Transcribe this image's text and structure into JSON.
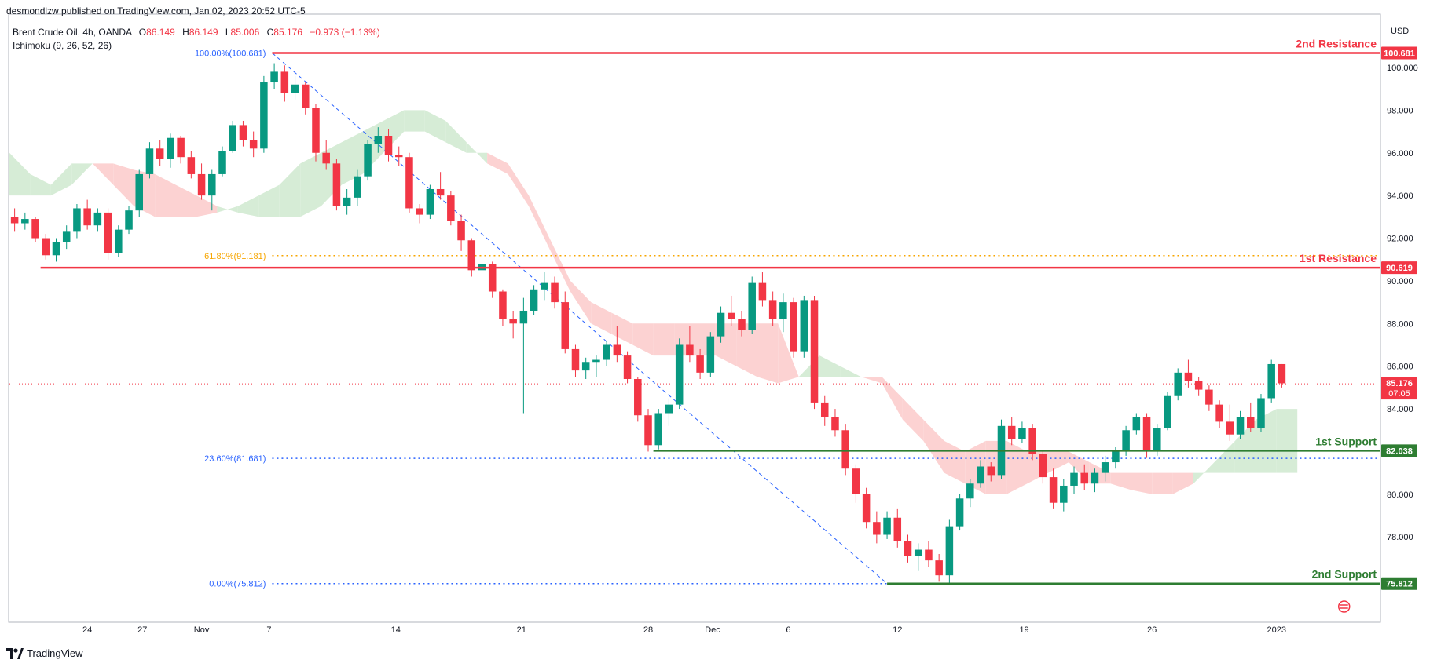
{
  "header": {
    "published": "desmondlzw published on TradingView.com, Jan 02, 2023 20:52 UTC-5",
    "symbol": "Brent Crude Oil, 4h, OANDA",
    "ohlc": {
      "o_label": "O",
      "o": "86.149",
      "h_label": "H",
      "h": "86.149",
      "l_label": "L",
      "l": "85.006",
      "c_label": "C",
      "c": "85.176",
      "change": "−0.973 (−1.13%)"
    },
    "indicator": "Ichimoku (9, 26, 52, 26)",
    "currency": "USD"
  },
  "footer": {
    "brand": "TradingView"
  },
  "colors": {
    "up": "#089981",
    "down": "#f23645",
    "resistance": "#f23645",
    "support": "#2e7d32",
    "fib": "#2962ff",
    "fib_mid": "#f7a600",
    "cloud_bull": "#d6ecd6",
    "cloud_bear": "#fcd2d2"
  },
  "chart_data": {
    "type": "candlestick",
    "ylim": [
      74,
      102.5
    ],
    "xlim": [
      0,
      132
    ],
    "y_ticks": [
      "78.000",
      "80.000",
      "82.000",
      "84.000",
      "86.000",
      "88.000",
      "90.000",
      "92.000",
      "94.000",
      "96.000",
      "98.000",
      "100.000"
    ],
    "x_ticks": [
      {
        "label": "24",
        "x": 7.5
      },
      {
        "label": "27",
        "x": 12.8
      },
      {
        "label": "Nov",
        "x": 18.5
      },
      {
        "label": "7",
        "x": 25.0
      },
      {
        "label": "14",
        "x": 37.2
      },
      {
        "label": "21",
        "x": 49.3
      },
      {
        "label": "28",
        "x": 61.5
      },
      {
        "label": "Dec",
        "x": 67.7
      },
      {
        "label": "6",
        "x": 75.0
      },
      {
        "label": "12",
        "x": 85.5
      },
      {
        "label": "19",
        "x": 97.7
      },
      {
        "label": "26",
        "x": 110.0
      },
      {
        "label": "2023",
        "x": 122.0
      }
    ],
    "levels": [
      {
        "name": "2nd Resistance",
        "value": "100.681",
        "type": "resistance",
        "x_start": 25.3
      },
      {
        "name": "1st Resistance",
        "value": "90.619",
        "type": "resistance",
        "x_start": 3.0
      },
      {
        "name": "1st Support",
        "value": "82.038",
        "type": "support",
        "x_start": 62.0
      },
      {
        "name": "2nd Support",
        "value": "75.812",
        "type": "support",
        "x_start": 84.5
      }
    ],
    "fibonacci": [
      {
        "label": "100.00%(100.681)",
        "value": 100.681,
        "color": "fib"
      },
      {
        "label": "61.80%(91.181)",
        "value": 91.181,
        "color": "fib_mid"
      },
      {
        "label": "23.60%(81.681)",
        "value": 81.681,
        "color": "fib"
      },
      {
        "label": "0.00%(75.812)",
        "value": 75.812,
        "color": "fib"
      }
    ],
    "fib_trend": {
      "from": [
        25.3,
        100.681
      ],
      "to": [
        84.5,
        75.812
      ]
    },
    "last_price": {
      "value": "85.176",
      "countdown": "07:05"
    },
    "cloud": {
      "x": [
        0,
        2,
        4,
        6,
        8,
        10,
        12,
        14,
        16,
        18,
        20,
        22,
        24,
        26,
        28,
        30,
        32,
        34,
        36,
        38,
        40,
        42,
        44,
        46,
        48,
        50,
        52,
        54,
        56,
        58,
        60,
        62,
        64,
        66,
        68,
        70,
        72,
        74,
        76,
        78,
        80,
        82,
        84,
        86,
        88,
        90,
        92,
        94,
        96,
        98,
        100,
        102,
        104,
        106,
        108,
        110,
        112,
        114,
        116,
        118,
        120,
        122,
        124
      ],
      "a": [
        96.0,
        95.0,
        94.5,
        95.5,
        95.5,
        94.5,
        93.5,
        93.0,
        93.0,
        93.0,
        93.2,
        93.5,
        94.0,
        94.5,
        95.5,
        96.0,
        96.5,
        97.0,
        97.5,
        98.0,
        98.0,
        97.5,
        96.5,
        95.5,
        95.0,
        93.5,
        91.5,
        89.5,
        88.0,
        87.5,
        87.0,
        86.5,
        86.5,
        86.5,
        86.5,
        86.0,
        85.5,
        85.2,
        85.5,
        86.5,
        86.0,
        85.5,
        85.2,
        83.5,
        82.5,
        81.0,
        80.5,
        80.0,
        80.0,
        80.5,
        81.0,
        81.5,
        80.5,
        80.5,
        80.2,
        80.0,
        80.0,
        80.5,
        81.5,
        82.5,
        83.5,
        84.0,
        84.0
      ],
      "b": [
        94.0,
        94.0,
        94.0,
        94.5,
        95.5,
        95.5,
        95.2,
        95.0,
        94.5,
        94.0,
        93.5,
        93.2,
        93.0,
        93.0,
        93.0,
        93.5,
        94.5,
        95.0,
        96.0,
        97.0,
        97.0,
        96.5,
        96.0,
        96.0,
        95.5,
        94.0,
        92.0,
        90.0,
        89.0,
        88.5,
        88.0,
        88.0,
        88.0,
        88.0,
        88.0,
        88.0,
        88.0,
        88.0,
        85.5,
        85.5,
        85.5,
        85.5,
        85.5,
        84.5,
        83.5,
        82.5,
        82.0,
        82.5,
        82.5,
        82.0,
        82.0,
        82.0,
        81.5,
        81.0,
        81.0,
        81.0,
        81.0,
        81.0,
        81.0,
        81.0,
        81.0,
        81.0,
        81.0
      ]
    },
    "candles": [
      [
        93.0,
        93.4,
        92.3,
        92.7
      ],
      [
        92.7,
        93.2,
        92.4,
        92.9
      ],
      [
        92.9,
        93.0,
        91.8,
        92.0
      ],
      [
        92.0,
        92.2,
        91.0,
        91.2
      ],
      [
        91.2,
        92.0,
        90.9,
        91.8
      ],
      [
        91.8,
        92.6,
        91.5,
        92.3
      ],
      [
        92.3,
        93.6,
        92.0,
        93.4
      ],
      [
        93.4,
        93.8,
        92.4,
        92.6
      ],
      [
        92.6,
        93.4,
        92.3,
        93.2
      ],
      [
        93.2,
        93.4,
        91.0,
        91.3
      ],
      [
        91.3,
        92.6,
        91.1,
        92.4
      ],
      [
        92.4,
        93.5,
        92.2,
        93.3
      ],
      [
        93.3,
        95.2,
        93.0,
        95.0
      ],
      [
        95.0,
        96.5,
        94.8,
        96.2
      ],
      [
        96.2,
        96.6,
        95.4,
        95.7
      ],
      [
        95.7,
        96.9,
        95.3,
        96.7
      ],
      [
        96.7,
        96.8,
        95.5,
        95.8
      ],
      [
        95.8,
        96.1,
        94.8,
        95.0
      ],
      [
        95.0,
        95.5,
        93.8,
        94.0
      ],
      [
        94.0,
        95.2,
        93.3,
        95.0
      ],
      [
        95.0,
        96.3,
        94.9,
        96.1
      ],
      [
        96.1,
        97.5,
        96.0,
        97.3
      ],
      [
        97.3,
        97.5,
        96.3,
        96.6
      ],
      [
        96.6,
        97.0,
        95.8,
        96.2
      ],
      [
        96.2,
        99.6,
        96.0,
        99.3
      ],
      [
        99.3,
        100.2,
        99.0,
        99.8
      ],
      [
        99.8,
        100.1,
        98.4,
        98.8
      ],
      [
        98.8,
        99.6,
        98.5,
        99.2
      ],
      [
        99.2,
        99.3,
        97.8,
        98.1
      ],
      [
        98.1,
        98.3,
        95.6,
        96.0
      ],
      [
        96.0,
        96.6,
        95.2,
        95.5
      ],
      [
        95.5,
        95.7,
        93.3,
        93.5
      ],
      [
        93.5,
        94.3,
        93.1,
        93.9
      ],
      [
        93.9,
        95.2,
        93.5,
        94.9
      ],
      [
        94.9,
        96.6,
        94.7,
        96.4
      ],
      [
        96.4,
        97.2,
        96.0,
        96.8
      ],
      [
        96.8,
        97.1,
        95.6,
        95.9
      ],
      [
        95.9,
        96.3,
        95.4,
        95.8
      ],
      [
        95.8,
        96.0,
        93.2,
        93.4
      ],
      [
        93.4,
        93.6,
        92.7,
        93.1
      ],
      [
        93.1,
        94.5,
        92.9,
        94.3
      ],
      [
        94.3,
        95.1,
        93.8,
        94.0
      ],
      [
        94.0,
        94.2,
        92.6,
        92.8
      ],
      [
        92.8,
        93.1,
        91.4,
        91.9
      ],
      [
        91.9,
        92.0,
        90.2,
        90.5
      ],
      [
        90.5,
        91.0,
        89.9,
        90.8
      ],
      [
        90.8,
        90.9,
        89.2,
        89.5
      ],
      [
        89.5,
        89.6,
        87.9,
        88.2
      ],
      [
        88.2,
        88.6,
        87.3,
        88.0
      ],
      [
        88.0,
        89.2,
        83.8,
        88.6
      ],
      [
        88.6,
        89.8,
        88.4,
        89.6
      ],
      [
        89.6,
        90.4,
        89.1,
        89.9
      ],
      [
        89.9,
        90.2,
        88.7,
        89.0
      ],
      [
        89.0,
        89.5,
        86.6,
        86.8
      ],
      [
        86.8,
        87.0,
        85.5,
        85.8
      ],
      [
        85.8,
        86.4,
        85.4,
        86.2
      ],
      [
        86.2,
        86.5,
        85.5,
        86.3
      ],
      [
        86.3,
        87.2,
        86.0,
        87.0
      ],
      [
        87.0,
        87.9,
        86.2,
        86.5
      ],
      [
        86.5,
        86.7,
        85.2,
        85.4
      ],
      [
        85.4,
        85.5,
        83.4,
        83.7
      ],
      [
        83.7,
        84.0,
        82.0,
        82.3
      ],
      [
        82.3,
        84.0,
        82.1,
        83.8
      ],
      [
        83.8,
        84.5,
        83.2,
        84.2
      ],
      [
        84.2,
        87.3,
        84.0,
        87.0
      ],
      [
        87.0,
        87.9,
        86.2,
        86.5
      ],
      [
        86.5,
        86.8,
        85.4,
        85.7
      ],
      [
        85.7,
        87.6,
        85.5,
        87.4
      ],
      [
        87.4,
        88.8,
        87.1,
        88.5
      ],
      [
        88.5,
        89.3,
        87.9,
        88.2
      ],
      [
        88.2,
        88.6,
        87.4,
        87.7
      ],
      [
        87.7,
        90.2,
        87.5,
        89.9
      ],
      [
        89.9,
        90.4,
        88.8,
        89.1
      ],
      [
        89.1,
        89.5,
        87.9,
        88.2
      ],
      [
        88.2,
        89.4,
        87.6,
        89.0
      ],
      [
        89.0,
        89.2,
        86.4,
        86.7
      ],
      [
        86.7,
        89.3,
        86.4,
        89.1
      ],
      [
        89.1,
        89.3,
        84.0,
        84.3
      ],
      [
        84.3,
        84.6,
        83.2,
        83.6
      ],
      [
        83.6,
        84.0,
        82.7,
        83.0
      ],
      [
        83.0,
        83.3,
        80.9,
        81.2
      ],
      [
        81.2,
        81.4,
        79.6,
        80.0
      ],
      [
        80.0,
        80.3,
        78.4,
        78.7
      ],
      [
        78.7,
        79.2,
        77.7,
        78.1
      ],
      [
        78.1,
        79.2,
        77.9,
        78.9
      ],
      [
        78.9,
        79.3,
        77.5,
        77.8
      ],
      [
        77.8,
        78.1,
        76.8,
        77.1
      ],
      [
        77.1,
        77.7,
        76.4,
        77.4
      ],
      [
        77.4,
        77.8,
        76.6,
        76.9
      ],
      [
        76.9,
        77.2,
        75.9,
        76.2
      ],
      [
        76.2,
        78.8,
        75.8,
        78.5
      ],
      [
        78.5,
        80.0,
        78.3,
        79.8
      ],
      [
        79.8,
        80.7,
        79.4,
        80.5
      ],
      [
        80.5,
        81.6,
        80.3,
        81.3
      ],
      [
        81.3,
        81.5,
        80.6,
        80.9
      ],
      [
        80.9,
        83.5,
        80.7,
        83.2
      ],
      [
        83.2,
        83.6,
        82.3,
        82.6
      ],
      [
        82.6,
        83.4,
        82.4,
        83.1
      ],
      [
        83.1,
        83.3,
        81.6,
        81.9
      ],
      [
        81.9,
        82.0,
        80.5,
        80.8
      ],
      [
        80.8,
        81.2,
        79.3,
        79.6
      ],
      [
        79.6,
        80.7,
        79.2,
        80.4
      ],
      [
        80.4,
        81.3,
        80.0,
        81.0
      ],
      [
        81.0,
        81.4,
        80.2,
        80.5
      ],
      [
        80.5,
        81.2,
        80.1,
        81.0
      ],
      [
        81.0,
        81.8,
        80.6,
        81.5
      ],
      [
        81.5,
        82.2,
        81.2,
        82.0
      ],
      [
        82.0,
        83.2,
        81.8,
        83.0
      ],
      [
        83.0,
        83.8,
        82.8,
        83.6
      ],
      [
        83.6,
        83.8,
        81.7,
        82.0
      ],
      [
        82.0,
        83.3,
        81.8,
        83.1
      ],
      [
        83.1,
        84.8,
        83.0,
        84.6
      ],
      [
        84.6,
        85.9,
        84.4,
        85.7
      ],
      [
        85.7,
        86.3,
        85.0,
        85.3
      ],
      [
        85.3,
        85.5,
        84.6,
        84.9
      ],
      [
        84.9,
        85.1,
        83.9,
        84.2
      ],
      [
        84.2,
        84.4,
        83.1,
        83.4
      ],
      [
        83.4,
        84.2,
        82.5,
        82.8
      ],
      [
        82.8,
        83.9,
        82.6,
        83.6
      ],
      [
        83.6,
        84.3,
        82.9,
        83.1
      ],
      [
        83.1,
        84.7,
        82.9,
        84.5
      ],
      [
        84.5,
        86.3,
        84.3,
        86.1
      ],
      [
        86.1,
        86.1,
        85.0,
        85.2
      ]
    ]
  }
}
